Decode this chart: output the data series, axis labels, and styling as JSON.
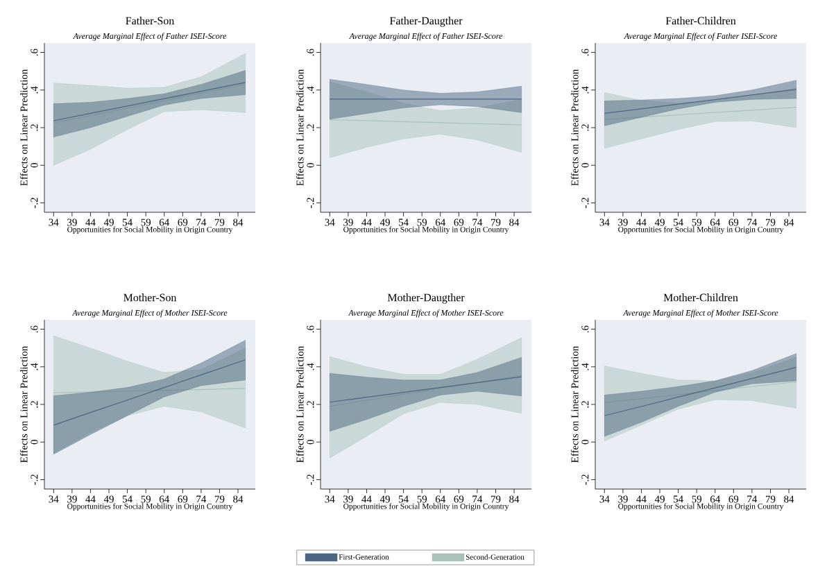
{
  "chart_data": [
    {
      "type": "line",
      "title": "Father-Son",
      "subtitle": "Average Marginal Effect of Father ISEI-Score",
      "xlabel": "Opportunities for Social Mobility in Origin Country",
      "ylabel": "Effects on Linear Prediction",
      "xlim": [
        31.5,
        88.7
      ],
      "ylim": [
        -0.25,
        0.65
      ],
      "xticks": [
        34,
        39,
        44,
        49,
        54,
        59,
        64,
        69,
        74,
        79,
        84
      ],
      "yticks": [
        {
          "value": -0.2,
          "label": "-.2"
        },
        0,
        {
          "value": 0.2,
          "label": ".2"
        },
        {
          "value": 0.4,
          "label": ".4"
        },
        {
          "value": 0.6,
          "label": ".6"
        }
      ],
      "x": [
        34,
        44,
        54,
        64,
        74,
        86
      ],
      "series": [
        {
          "color": "#a9c2b9",
          "values": [
            0.225,
            0.264,
            0.304,
            0.343,
            0.383,
            0.43
          ],
          "lower": [
            0.0,
            0.085,
            0.19,
            0.285,
            0.295,
            0.28
          ],
          "upper": [
            0.437,
            0.425,
            0.41,
            0.415,
            0.47,
            0.595
          ]
        },
        {
          "color": "#4c6580",
          "values": [
            0.237,
            0.276,
            0.315,
            0.354,
            0.393,
            0.44
          ],
          "lower": [
            0.15,
            0.2,
            0.26,
            0.32,
            0.355,
            0.375
          ],
          "upper": [
            0.327,
            0.335,
            0.355,
            0.38,
            0.43,
            0.504
          ]
        }
      ]
    },
    {
      "type": "line",
      "title": "Father-Daugther",
      "subtitle": "Average Marginal Effect of Father ISEI-Score",
      "xlabel": "Opportunities for Social Mobility in Origin Country",
      "ylabel": "Effects on Linear Prediction",
      "xlim": [
        31.5,
        88.7
      ],
      "ylim": [
        -0.25,
        0.65
      ],
      "xticks": [
        34,
        39,
        44,
        49,
        54,
        59,
        64,
        69,
        74,
        79,
        84
      ],
      "yticks": [
        {
          "value": -0.2,
          "label": "-.2"
        },
        0,
        {
          "value": 0.2,
          "label": ".2"
        },
        {
          "value": 0.4,
          "label": ".4"
        },
        {
          "value": 0.6,
          "label": ".6"
        }
      ],
      "x": [
        34,
        44,
        54,
        64,
        74,
        86
      ],
      "series": [
        {
          "color": "#a9c2b9",
          "values": [
            0.242,
            0.237,
            0.232,
            0.226,
            0.221,
            0.215
          ],
          "lower": [
            0.04,
            0.095,
            0.14,
            0.165,
            0.135,
            0.068
          ],
          "upper": [
            0.443,
            0.39,
            0.33,
            0.29,
            0.305,
            0.35
          ]
        },
        {
          "color": "#4c6580",
          "values": [
            0.352,
            0.352,
            0.352,
            0.352,
            0.352,
            0.352
          ],
          "lower": [
            0.245,
            0.275,
            0.305,
            0.322,
            0.312,
            0.28
          ],
          "upper": [
            0.457,
            0.43,
            0.4,
            0.383,
            0.39,
            0.42
          ]
        }
      ]
    },
    {
      "type": "line",
      "title": "Father-Children",
      "subtitle": "Average Marginal Effect of Father ISEI-Score",
      "xlabel": "Opportunities for Social Mobility in Origin Country",
      "ylabel": "Effects on Linear Prediction",
      "xlim": [
        31.5,
        88.7
      ],
      "ylim": [
        -0.25,
        0.65
      ],
      "xticks": [
        34,
        39,
        44,
        49,
        54,
        59,
        64,
        69,
        74,
        79,
        84
      ],
      "yticks": [
        {
          "value": -0.2,
          "label": "-.2"
        },
        0,
        {
          "value": 0.2,
          "label": ".2"
        },
        {
          "value": 0.4,
          "label": ".4"
        },
        {
          "value": 0.6,
          "label": ".6"
        }
      ],
      "x": [
        34,
        44,
        54,
        64,
        74,
        86
      ],
      "series": [
        {
          "color": "#a9c2b9",
          "values": [
            0.243,
            0.256,
            0.268,
            0.281,
            0.293,
            0.308
          ],
          "lower": [
            0.09,
            0.14,
            0.19,
            0.232,
            0.235,
            0.2
          ],
          "upper": [
            0.386,
            0.345,
            0.33,
            0.345,
            0.37,
            0.41
          ]
        },
        {
          "color": "#4c6580",
          "values": [
            0.276,
            0.3,
            0.325,
            0.349,
            0.374,
            0.403
          ],
          "lower": [
            0.21,
            0.255,
            0.3,
            0.335,
            0.35,
            0.355
          ],
          "upper": [
            0.342,
            0.347,
            0.355,
            0.37,
            0.4,
            0.452
          ]
        }
      ]
    },
    {
      "type": "line",
      "title": "Mother-Son",
      "subtitle": "Average Marginal Effect of Mother ISEI-Score",
      "xlabel": "Opportunities for Social Mobility in Origin Country",
      "ylabel": "Effects on Linear Prediction",
      "xlim": [
        31.5,
        88.7
      ],
      "ylim": [
        -0.25,
        0.65
      ],
      "xticks": [
        34,
        39,
        44,
        49,
        54,
        59,
        64,
        69,
        74,
        79,
        84
      ],
      "yticks": [
        {
          "value": -0.2,
          "label": "-.2"
        },
        0,
        {
          "value": 0.2,
          "label": ".2"
        },
        {
          "value": 0.4,
          "label": ".4"
        },
        {
          "value": 0.6,
          "label": ".6"
        }
      ],
      "x": [
        34,
        44,
        54,
        64,
        74,
        86
      ],
      "series": [
        {
          "color": "#a9c2b9",
          "values": [
            0.262,
            0.266,
            0.271,
            0.275,
            0.279,
            0.285
          ],
          "lower": [
            -0.06,
            0.05,
            0.14,
            0.19,
            0.16,
            0.075
          ],
          "upper": [
            0.565,
            0.5,
            0.43,
            0.37,
            0.385,
            0.5
          ]
        },
        {
          "color": "#4c6580",
          "values": [
            0.09,
            0.157,
            0.223,
            0.29,
            0.357,
            0.437
          ],
          "lower": [
            -0.065,
            0.04,
            0.14,
            0.24,
            0.3,
            0.33
          ],
          "upper": [
            0.246,
            0.265,
            0.29,
            0.335,
            0.42,
            0.541
          ]
        }
      ]
    },
    {
      "type": "line",
      "title": "Mother-Daugther",
      "subtitle": "Average Marginal Effect of Mother ISEI-Score",
      "xlabel": "Opportunities for Social Mobility in Origin Country",
      "ylabel": "Effects on Linear Prediction",
      "xlim": [
        31.5,
        88.7
      ],
      "ylim": [
        -0.25,
        0.65
      ],
      "xticks": [
        34,
        39,
        44,
        49,
        54,
        59,
        64,
        69,
        74,
        79,
        84
      ],
      "yticks": [
        {
          "value": -0.2,
          "label": "-.2"
        },
        0,
        {
          "value": 0.2,
          "label": ".2"
        },
        {
          "value": 0.4,
          "label": ".4"
        },
        {
          "value": 0.6,
          "label": ".6"
        }
      ],
      "x": [
        34,
        44,
        54,
        64,
        74,
        86
      ],
      "legend": "bottom",
      "series": [
        {
          "name": "Second-Generation",
          "color": "#a9c2b9",
          "values": [
            0.19,
            0.222,
            0.254,
            0.285,
            0.317,
            0.355
          ],
          "lower": [
            -0.085,
            0.03,
            0.15,
            0.21,
            0.2,
            0.152
          ],
          "upper": [
            0.455,
            0.4,
            0.36,
            0.36,
            0.44,
            0.555
          ]
        },
        {
          "name": "First-Generation",
          "color": "#4c6580",
          "values": [
            0.212,
            0.238,
            0.264,
            0.29,
            0.316,
            0.347
          ],
          "lower": [
            0.057,
            0.12,
            0.19,
            0.25,
            0.27,
            0.245
          ],
          "upper": [
            0.365,
            0.345,
            0.33,
            0.33,
            0.37,
            0.45
          ]
        }
      ]
    },
    {
      "type": "line",
      "title": "Mother-Children",
      "subtitle": "Average Marginal Effect of Mother ISEI-Score",
      "xlabel": "Opportunities for Social Mobility in Origin Country",
      "ylabel": "Effects on Linear Prediction",
      "xlim": [
        31.5,
        88.7
      ],
      "ylim": [
        -0.25,
        0.65
      ],
      "xticks": [
        34,
        39,
        44,
        49,
        54,
        59,
        64,
        69,
        74,
        79,
        84
      ],
      "yticks": [
        {
          "value": -0.2,
          "label": "-.2"
        },
        0,
        {
          "value": 0.2,
          "label": ".2"
        },
        {
          "value": 0.4,
          "label": ".4"
        },
        {
          "value": 0.6,
          "label": ".6"
        }
      ],
      "x": [
        34,
        44,
        54,
        64,
        74,
        86
      ],
      "series": [
        {
          "color": "#a9c2b9",
          "values": [
            0.21,
            0.231,
            0.252,
            0.274,
            0.295,
            0.32
          ],
          "lower": [
            0.005,
            0.09,
            0.175,
            0.225,
            0.22,
            0.18
          ],
          "upper": [
            0.405,
            0.365,
            0.33,
            0.325,
            0.37,
            0.45
          ]
        },
        {
          "color": "#4c6580",
          "values": [
            0.14,
            0.189,
            0.239,
            0.288,
            0.338,
            0.397
          ],
          "lower": [
            0.03,
            0.105,
            0.19,
            0.265,
            0.31,
            0.325
          ],
          "upper": [
            0.25,
            0.27,
            0.295,
            0.325,
            0.38,
            0.47
          ]
        }
      ]
    }
  ]
}
